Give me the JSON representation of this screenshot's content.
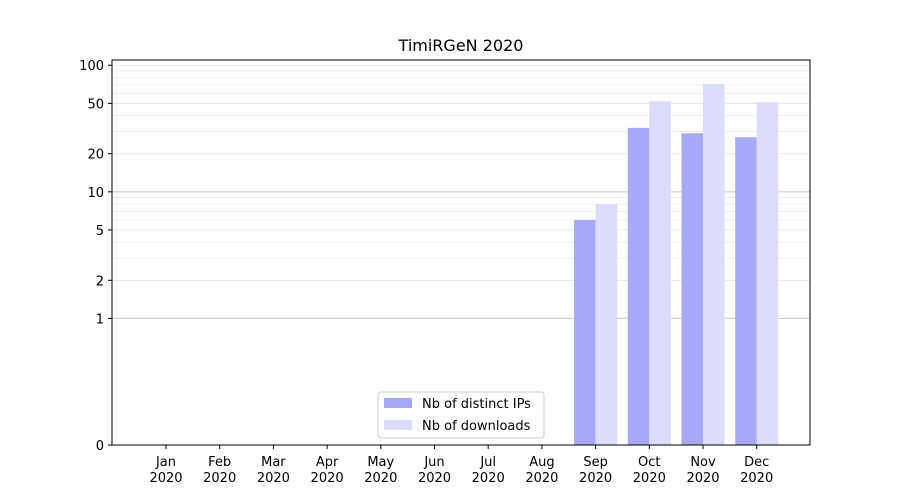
{
  "chart_data": {
    "type": "bar",
    "title": "TimiRGeN 2020",
    "xlabel": "",
    "ylabel": "",
    "y_scale": "symlog",
    "ylim": [
      0,
      110
    ],
    "y_ticks": [
      0,
      1,
      2,
      5,
      10,
      20,
      50,
      100
    ],
    "y_tick_labels": [
      "0",
      "1",
      "2",
      "5",
      "10",
      "20",
      "50",
      "100"
    ],
    "grid": true,
    "legend_position": "bottom-center",
    "categories": [
      "Jan\n2020",
      "Feb\n2020",
      "Mar\n2020",
      "Apr\n2020",
      "May\n2020",
      "Jun\n2020",
      "Jul\n2020",
      "Aug\n2020",
      "Sep\n2020",
      "Oct\n2020",
      "Nov\n2020",
      "Dec\n2020"
    ],
    "series": [
      {
        "name": "Nb of distinct IPs",
        "color": "#a8a8f8",
        "values": [
          0,
          0,
          0,
          0,
          0,
          0,
          0,
          0,
          6,
          32,
          29,
          27
        ]
      },
      {
        "name": "Nb of downloads",
        "color": "#dcdcfc",
        "values": [
          0,
          0,
          0,
          0,
          0,
          0,
          0,
          0,
          8,
          52,
          71,
          51
        ]
      }
    ]
  }
}
